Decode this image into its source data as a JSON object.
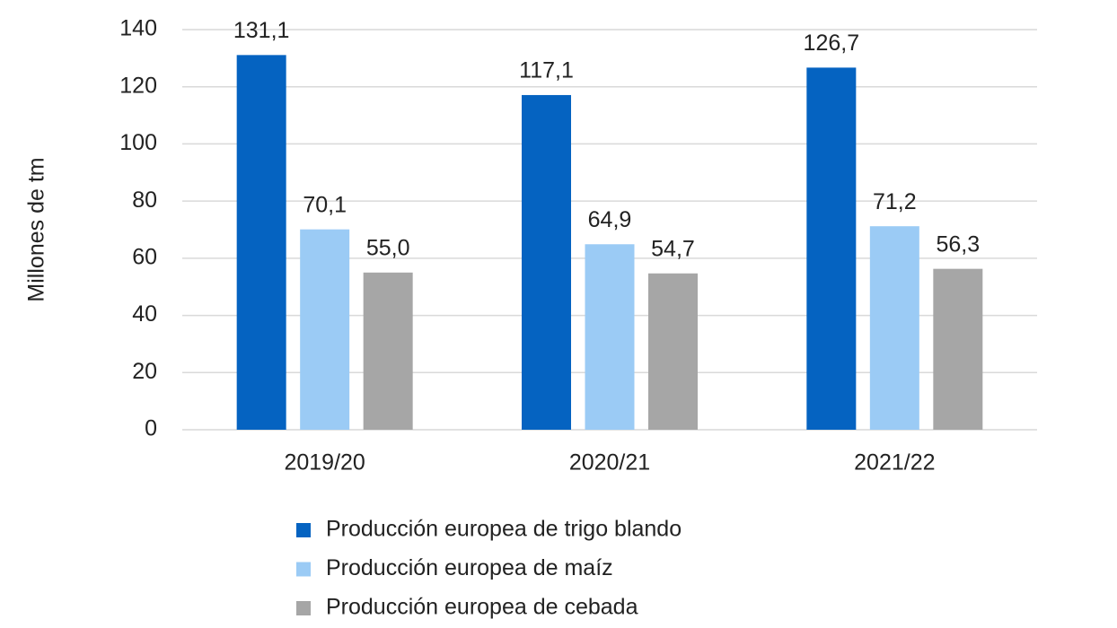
{
  "chart_data": {
    "type": "bar",
    "y_label": "Millones de tm",
    "categories": [
      "2019/20",
      "2020/21",
      "2021/22"
    ],
    "series": [
      {
        "name": "Producción europea de trigo blando",
        "color": "#0563c1",
        "values": [
          131.1,
          117.1,
          126.7
        ],
        "value_labels": [
          "131,1",
          "117,1",
          "126,7"
        ]
      },
      {
        "name": "Producción europea de maíz",
        "color": "#9bcbf5",
        "values": [
          70.1,
          64.9,
          71.2
        ],
        "value_labels": [
          "70,1",
          "64,9",
          "71,2"
        ]
      },
      {
        "name": "Producción europea de cebada",
        "color": "#a6a6a6",
        "values": [
          55.0,
          54.7,
          56.3
        ],
        "value_labels": [
          "55,0",
          "54,7",
          "56,3"
        ]
      }
    ],
    "ylim": [
      0,
      140
    ],
    "yticks": [
      0,
      20,
      40,
      60,
      80,
      100,
      120,
      140
    ],
    "grid": true
  }
}
